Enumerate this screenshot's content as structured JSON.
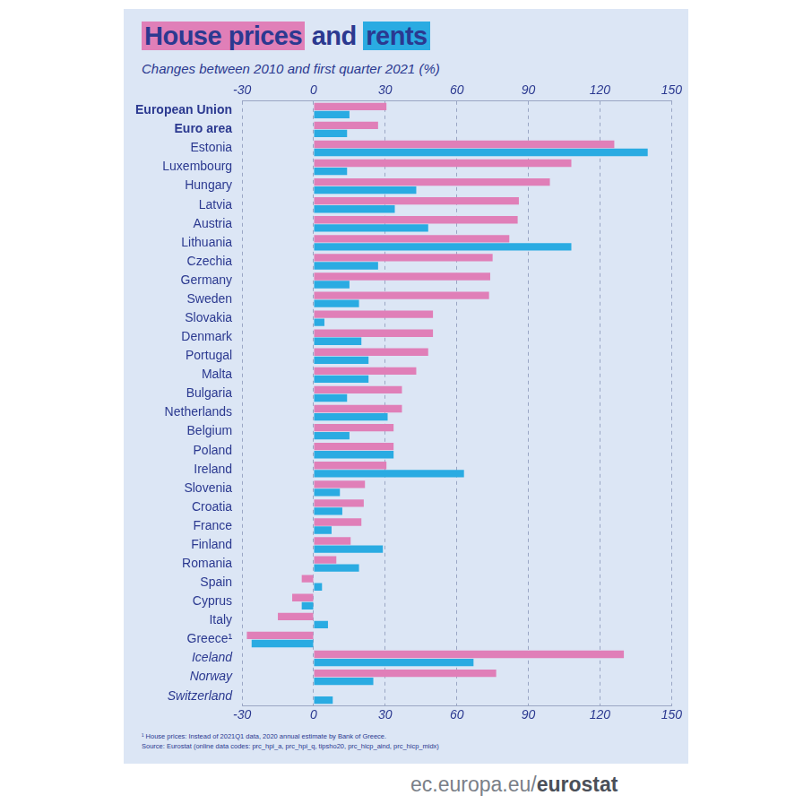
{
  "chart_data": {
    "type": "bar",
    "orientation": "horizontal",
    "title": "House prices and rents",
    "subtitle": "Changes between 2010 and first quarter 2021 (%)",
    "notes": [
      "¹ House prices: Instead of 2021Q1 data, 2020 annual estimate by Bank of Greece.",
      "Source: Eurostat (online data codes: prc_hpi_a, prc_hpi_q, tipsho20, prc_hicp_aind, prc_hicp_midx)"
    ],
    "website": "ec.europa.eu/eurostat",
    "categories": [
      "European Union",
      "Euro area",
      "Estonia",
      "Luxembourg",
      "Hungary",
      "Latvia",
      "Austria",
      "Lithuania",
      "Czechia",
      "Germany",
      "Sweden",
      "Slovakia",
      "Denmark",
      "Portugal",
      "Malta",
      "Bulgaria",
      "Netherlands",
      "Belgium",
      "Poland",
      "Ireland",
      "Slovenia",
      "Croatia",
      "France",
      "Finland",
      "Romania",
      "Spain",
      "Cyprus",
      "Italy",
      "Greece¹",
      "Iceland",
      "Norway",
      "Switzerland"
    ],
    "series": [
      {
        "name": "House prices",
        "color": "#e07fb8",
        "values": [
          30.5,
          27,
          126,
          108,
          99,
          86,
          85.5,
          82,
          75,
          74,
          73.5,
          50,
          50,
          48,
          43,
          37,
          37,
          33.5,
          33.5,
          30.5,
          21.5,
          21,
          20,
          15.5,
          9.5,
          -5,
          -9,
          -15,
          -28,
          130,
          76.5,
          null
        ]
      },
      {
        "name": "rents",
        "color": "#2aabe2",
        "values": [
          15,
          14,
          140,
          14,
          43,
          34,
          48,
          108,
          27,
          15,
          19,
          4.5,
          20,
          23,
          23,
          14,
          31,
          15,
          33.5,
          63,
          11,
          12,
          7.5,
          29,
          19,
          3.5,
          -5,
          6,
          -26,
          67,
          25,
          8
        ]
      }
    ],
    "xlim": [
      -30,
      150
    ],
    "xticks": [
      -30,
      0,
      30,
      60,
      90,
      120,
      150
    ],
    "grid": true
  }
}
